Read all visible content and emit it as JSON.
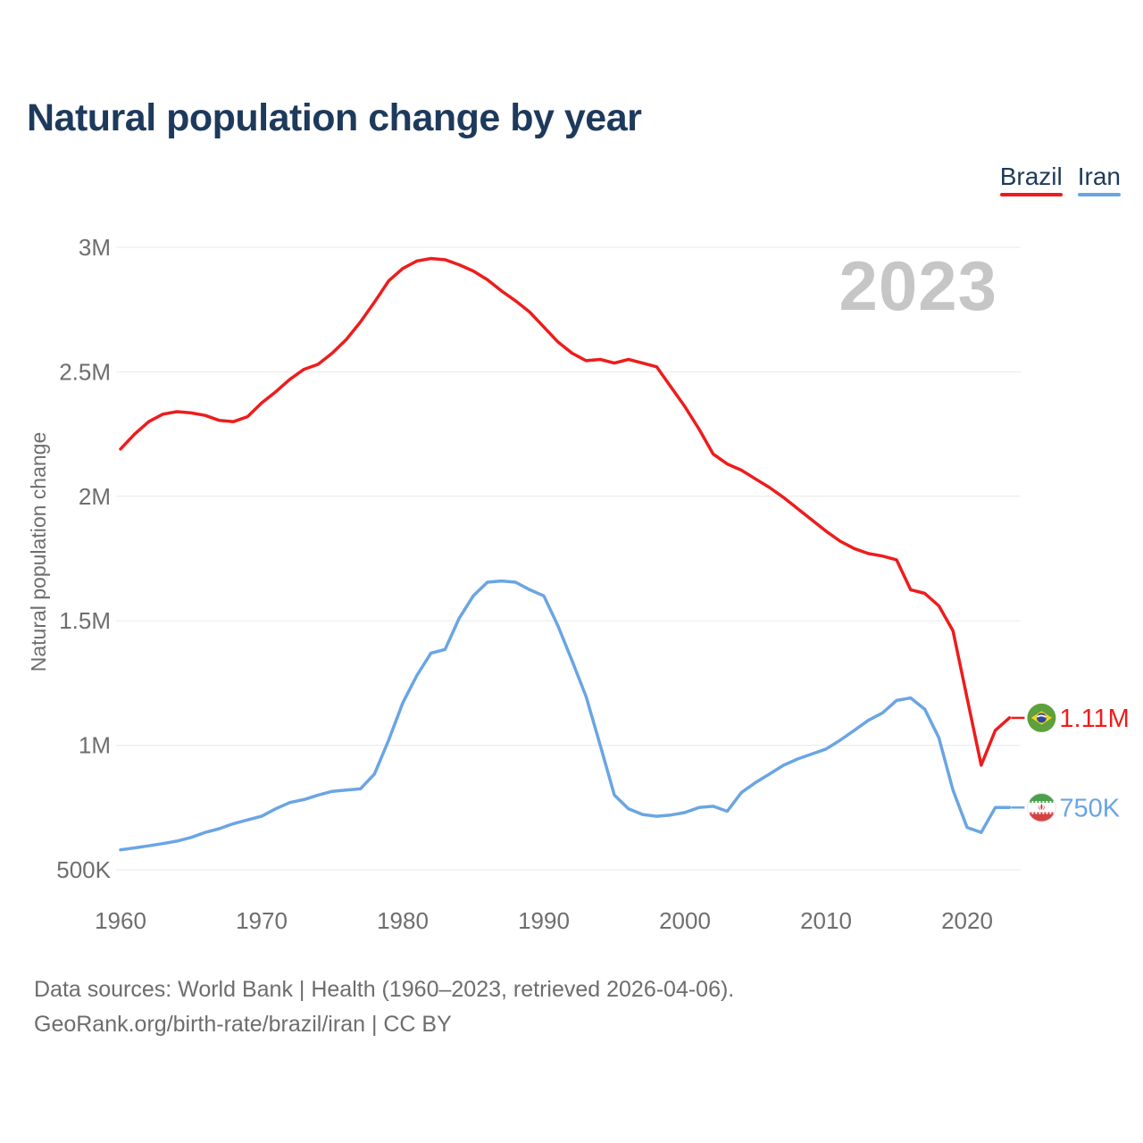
{
  "title": "Natural population change by year",
  "legend": {
    "items": [
      {
        "label": "Brazil",
        "color": "#ee1c1c"
      },
      {
        "label": "Iran",
        "color": "#6aa5e3"
      }
    ]
  },
  "footer": {
    "line1": "Data sources: World Bank | Health (1960–2023, retrieved 2026-04-06).",
    "line2": "GeoRank.org/birth-rate/brazil/iran | CC BY"
  },
  "chart_data": {
    "type": "line",
    "title": "Natural population change by year",
    "xlabel": "",
    "ylabel": "Natural population change",
    "watermark": "2023",
    "grid": "horizontal",
    "legend_position": "top-right",
    "xlim": [
      1960,
      2023
    ],
    "ylim": [
      500000,
      3000000
    ],
    "xticks": [
      1960,
      1970,
      1980,
      1990,
      2000,
      2010,
      2020
    ],
    "yticks": [
      {
        "value": 500000,
        "label": "500K"
      },
      {
        "value": 1000000,
        "label": "1M"
      },
      {
        "value": 1500000,
        "label": "1.5M"
      },
      {
        "value": 2000000,
        "label": "2M"
      },
      {
        "value": 2500000,
        "label": "2.5M"
      },
      {
        "value": 3000000,
        "label": "3M"
      }
    ],
    "years": [
      1960,
      1961,
      1962,
      1963,
      1964,
      1965,
      1966,
      1967,
      1968,
      1969,
      1970,
      1971,
      1972,
      1973,
      1974,
      1975,
      1976,
      1977,
      1978,
      1979,
      1980,
      1981,
      1982,
      1983,
      1984,
      1985,
      1986,
      1987,
      1988,
      1989,
      1990,
      1991,
      1992,
      1993,
      1994,
      1995,
      1996,
      1997,
      1998,
      1999,
      2000,
      2001,
      2002,
      2003,
      2004,
      2005,
      2006,
      2007,
      2008,
      2009,
      2010,
      2011,
      2012,
      2013,
      2014,
      2015,
      2016,
      2017,
      2018,
      2019,
      2020,
      2021,
      2022,
      2023
    ],
    "series": [
      {
        "name": "Brazil",
        "color": "#ee1c1c",
        "end_label": "1.11M",
        "flag": "brazil",
        "values": [
          2190000,
          2250000,
          2300000,
          2330000,
          2340000,
          2335000,
          2325000,
          2305000,
          2300000,
          2320000,
          2375000,
          2420000,
          2470000,
          2510000,
          2530000,
          2575000,
          2630000,
          2700000,
          2780000,
          2865000,
          2915000,
          2945000,
          2955000,
          2950000,
          2930000,
          2905000,
          2870000,
          2825000,
          2785000,
          2740000,
          2680000,
          2620000,
          2575000,
          2545000,
          2550000,
          2535000,
          2550000,
          2535000,
          2520000,
          2440000,
          2360000,
          2270000,
          2170000,
          2130000,
          2105000,
          2070000,
          2035000,
          1995000,
          1950000,
          1905000,
          1860000,
          1820000,
          1790000,
          1770000,
          1760000,
          1745000,
          1625000,
          1610000,
          1560000,
          1460000,
          1190000,
          920000,
          1060000,
          1110000
        ]
      },
      {
        "name": "Iran",
        "color": "#6aa5e3",
        "end_label": "750K",
        "flag": "iran",
        "values": [
          580000,
          588000,
          596000,
          605000,
          615000,
          630000,
          650000,
          665000,
          685000,
          700000,
          715000,
          745000,
          770000,
          782000,
          800000,
          815000,
          820000,
          825000,
          885000,
          1020000,
          1170000,
          1280000,
          1370000,
          1385000,
          1510000,
          1600000,
          1655000,
          1660000,
          1655000,
          1625000,
          1600000,
          1480000,
          1340000,
          1195000,
          1000000,
          800000,
          745000,
          722000,
          715000,
          720000,
          730000,
          750000,
          755000,
          735000,
          810000,
          850000,
          885000,
          920000,
          945000,
          965000,
          985000,
          1020000,
          1060000,
          1100000,
          1130000,
          1180000,
          1190000,
          1145000,
          1030000,
          820000,
          670000,
          650000,
          750000,
          750000
        ]
      }
    ]
  }
}
